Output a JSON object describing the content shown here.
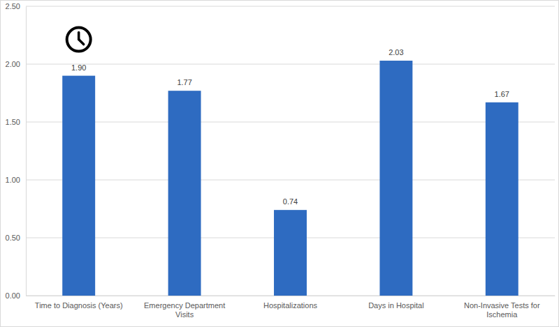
{
  "chart_data": {
    "type": "bar",
    "categories": [
      "Time to Diagnosis (Years)",
      "Emergency Department Visits",
      "Hospitalizations",
      "Days in Hospital",
      "Non-Invasive Tests for Ischemia"
    ],
    "values": [
      1.9,
      1.77,
      0.74,
      2.03,
      1.67
    ],
    "value_labels": [
      "1.90",
      "1.77",
      "0.74",
      "2.03",
      "1.67"
    ],
    "color": "#2e6bc1",
    "ylim": [
      0,
      2.5
    ],
    "yticks": [
      {
        "value": 0,
        "label": "0.00"
      },
      {
        "value": 0.5,
        "label": "0.50"
      },
      {
        "value": 1,
        "label": "1.00"
      },
      {
        "value": 1.5,
        "label": "1.50"
      },
      {
        "value": 2,
        "label": "2.00"
      },
      {
        "value": 2.5,
        "label": "2.50"
      }
    ],
    "grid": true,
    "data_labels": true
  }
}
